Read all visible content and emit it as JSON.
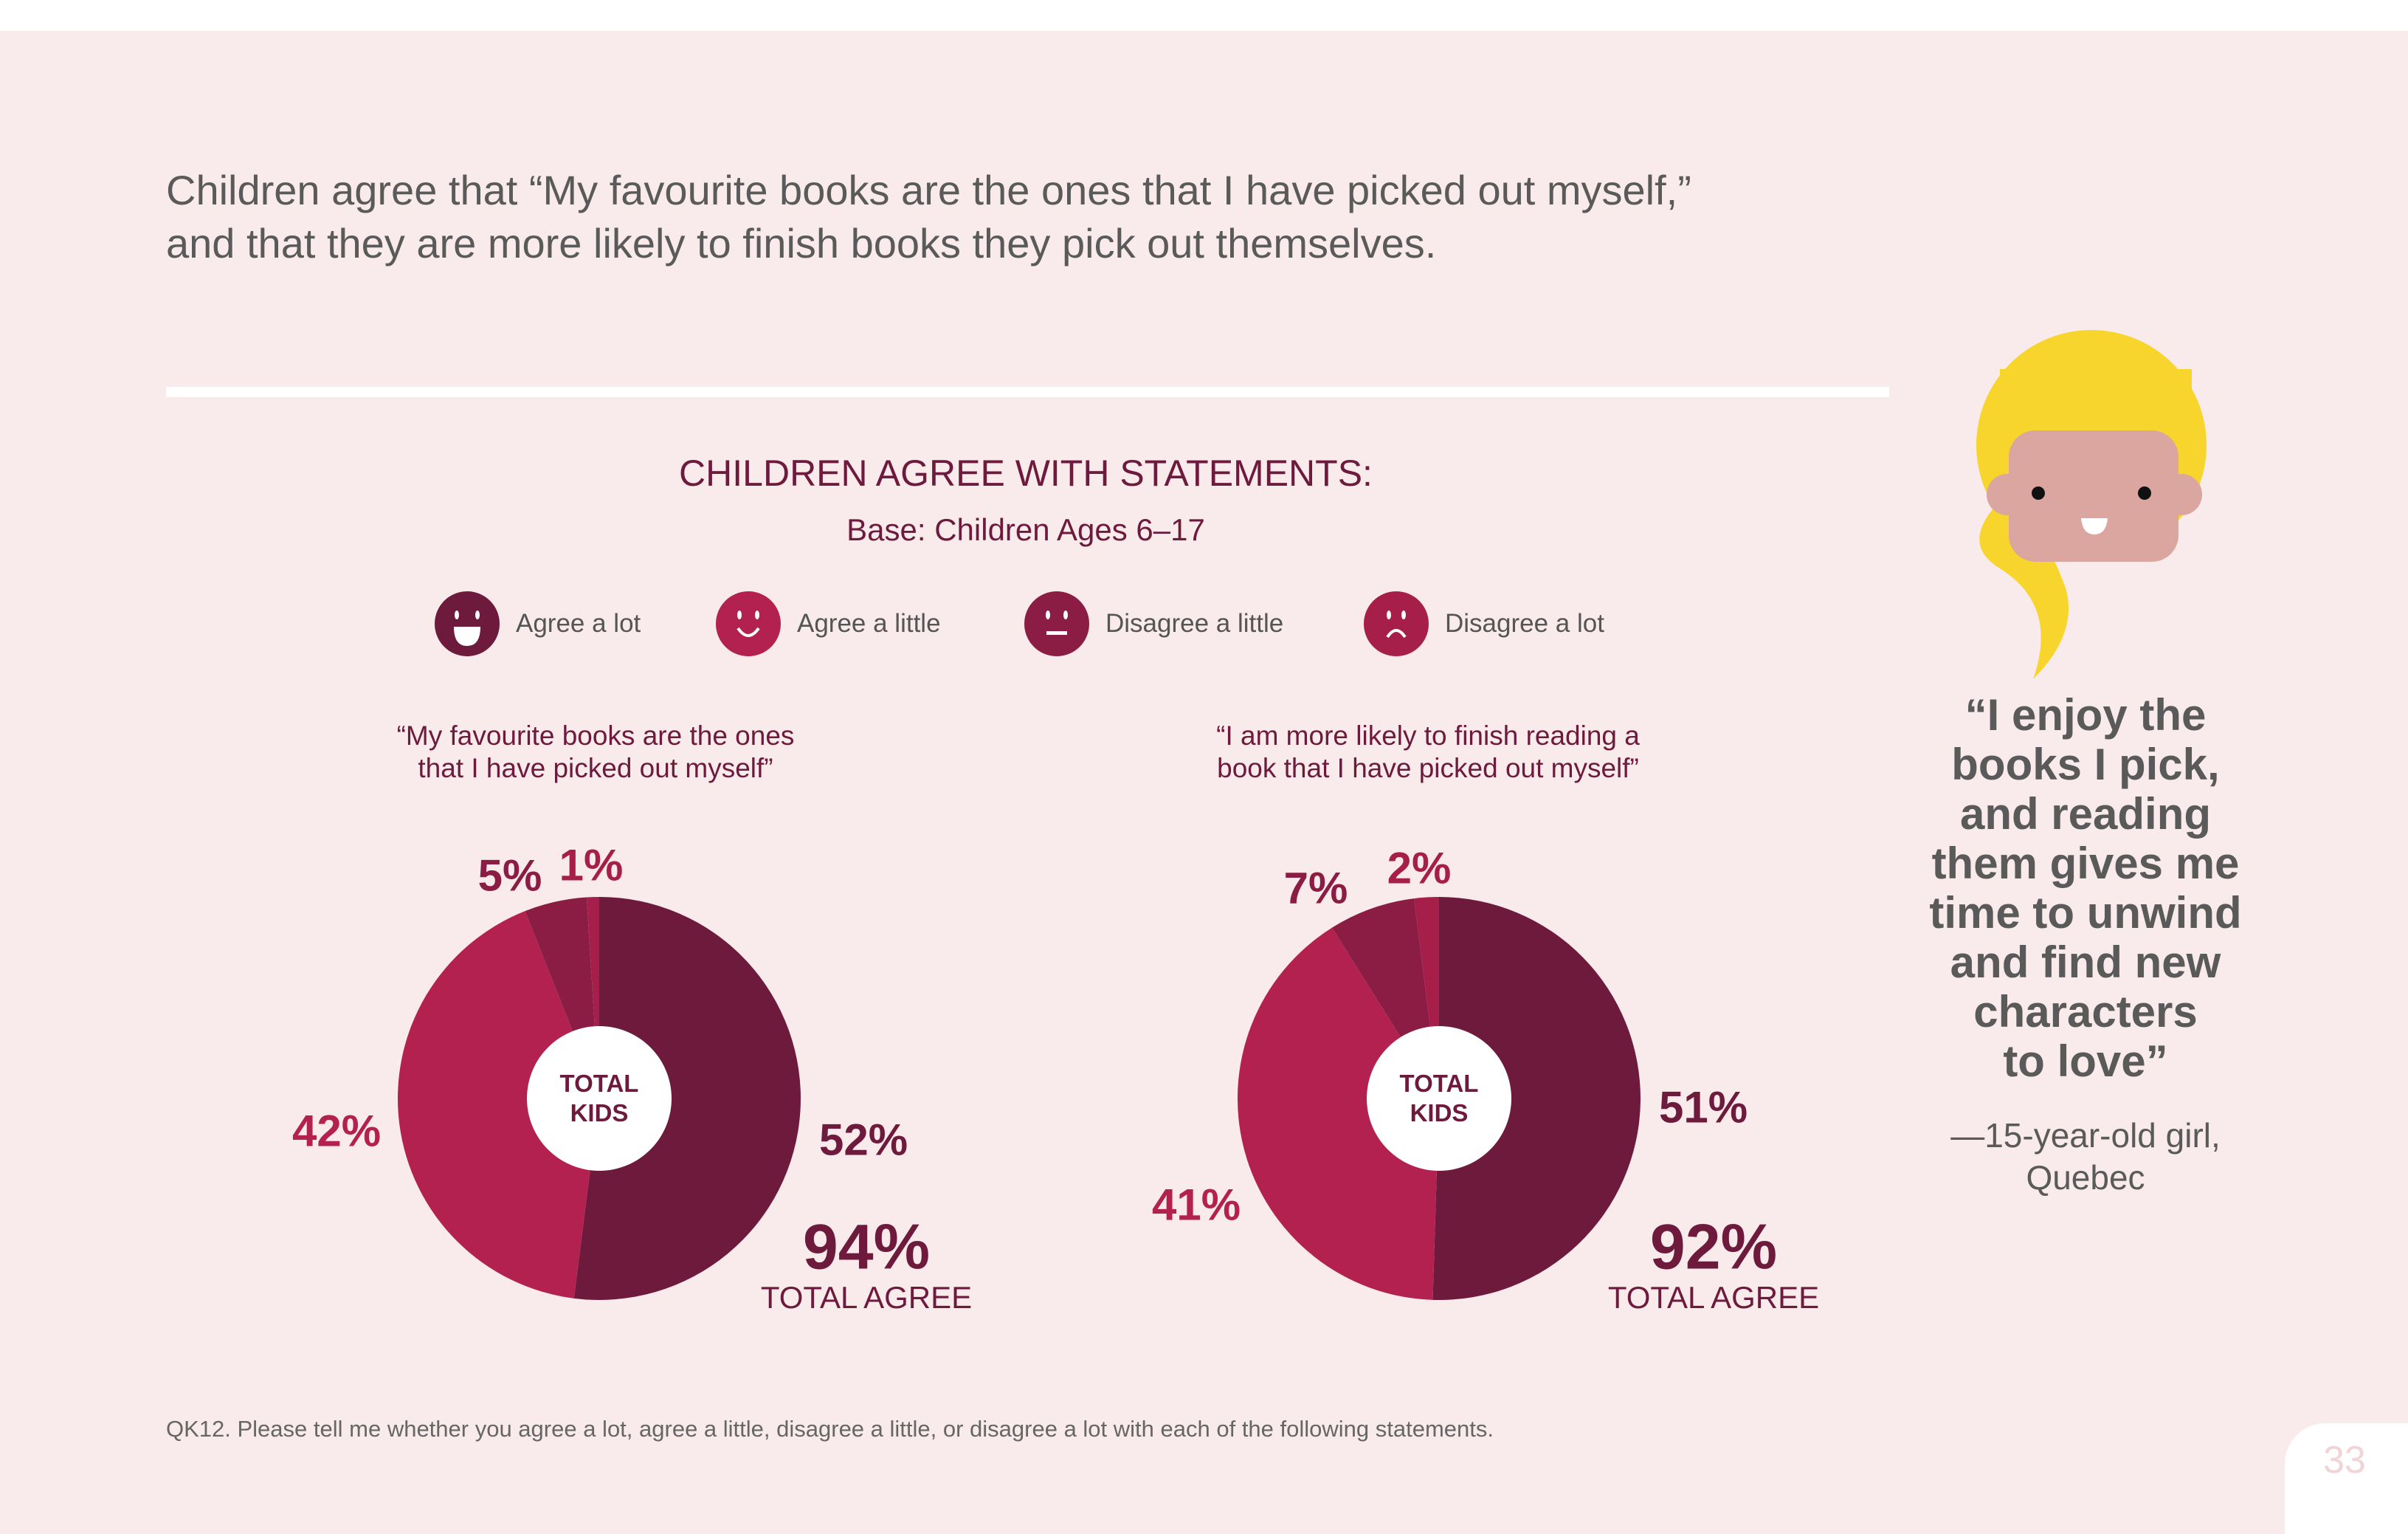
{
  "headline": {
    "line1": "Children agree that “My favourite books are the ones that I have picked out myself,”",
    "line2": "and that they are more likely to finish books they pick out themselves."
  },
  "chart_title": "CHILDREN AGREE WITH STATEMENTS:",
  "chart_base": "Base: Children Ages 6–17",
  "legend": [
    {
      "label": "Agree a lot",
      "icon": "laughing-face-icon",
      "color": "#6d1a3c"
    },
    {
      "label": "Agree a little",
      "icon": "smiling-face-icon",
      "color": "#b22150"
    },
    {
      "label": "Disagree a little",
      "icon": "neutral-face-icon",
      "color": "#8b1d45"
    },
    {
      "label": "Disagree a lot",
      "icon": "frowning-face-icon",
      "color": "#a61f4a"
    }
  ],
  "chart_data": [
    {
      "type": "pie",
      "donut": true,
      "title": "“My favourite books are the ones that I have picked out myself”",
      "categories": [
        "Agree a lot",
        "Agree a little",
        "Disagree a little",
        "Disagree a lot"
      ],
      "values": [
        52,
        42,
        5,
        1
      ],
      "labels": [
        "52%",
        "42%",
        "5%",
        "1%"
      ],
      "center_label": [
        "TOTAL",
        "KIDS"
      ],
      "total": "94%",
      "total_label": "TOTAL AGREE"
    },
    {
      "type": "pie",
      "donut": true,
      "title": "“I am more likely to finish reading a book that I have picked out myself”",
      "categories": [
        "Agree a lot",
        "Agree a little",
        "Disagree a little",
        "Disagree a lot"
      ],
      "values": [
        51,
        41,
        7,
        2
      ],
      "labels": [
        "51%",
        "41%",
        "7%",
        "2%"
      ],
      "center_label": [
        "TOTAL",
        "KIDS"
      ],
      "total": "92%",
      "total_label": "TOTAL AGREE"
    }
  ],
  "statements": [
    {
      "line1": "“My favourite books are the ones",
      "line2": "that I have picked out myself”"
    },
    {
      "line1": "“I am more likely to finish reading a",
      "line2": "book that I have picked out myself”"
    }
  ],
  "quote": {
    "lines": [
      "“I enjoy the",
      "books I pick,",
      "and reading",
      "them gives me",
      "time to unwind",
      "and find new",
      "characters",
      "to love”"
    ],
    "attribution1": "—15-year-old girl,",
    "attribution2": "Quebec"
  },
  "footnote": "QK12. Please tell me whether you agree a lot, agree a little, disagree a little, or disagree a lot with each of the following statements.",
  "page_number": "33"
}
